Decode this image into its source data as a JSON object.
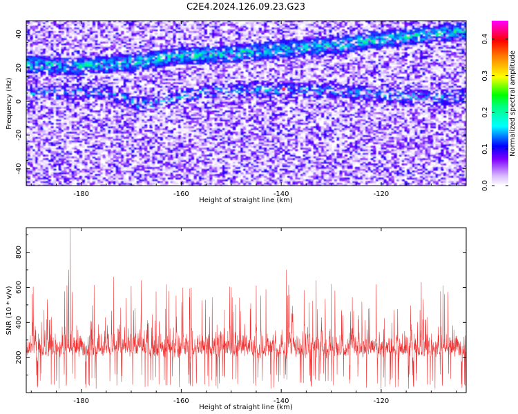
{
  "title": "C2E4.2024.126.09.23.G23",
  "chart_data": [
    {
      "type": "heatmap",
      "xlabel": "Height of straight line (km)",
      "ylabel": "Frequency (Hz)",
      "xlim": [
        -191,
        -103
      ],
      "ylim": [
        -50,
        48
      ],
      "x_ticks": [
        -180,
        -160,
        -140,
        -120
      ],
      "x_tick_labels": [
        "-180",
        "-160",
        "-140",
        "-120"
      ],
      "y_ticks": [
        40,
        20,
        0,
        -20,
        -40
      ],
      "y_tick_labels": [
        "40",
        "20",
        "0",
        "-20",
        "-40"
      ],
      "colorbar": {
        "label": "Normalized spectral amplitude",
        "range": [
          0,
          0.45
        ],
        "ticks": [
          0.0,
          0.1,
          0.2,
          0.3,
          0.4
        ],
        "tick_labels": [
          "0.0",
          "0.1",
          "0.2",
          "0.3",
          "0.4"
        ],
        "colormap": [
          "#ffffff",
          "#7f00ff",
          "#0000ff",
          "#00ffff",
          "#00ff00",
          "#ffff00",
          "#ff8000",
          "#ff0000",
          "#ff00ff"
        ]
      },
      "features": [
        {
          "name": "upper band",
          "points": [
            [
              -191,
              22
            ],
            [
              -180,
              21
            ],
            [
              -170,
              23
            ],
            [
              -160,
              27
            ],
            [
              -150,
              28
            ],
            [
              -140,
              31
            ],
            [
              -130,
              33
            ],
            [
              -120,
              37
            ],
            [
              -110,
              40
            ],
            [
              -103,
              42
            ]
          ]
        },
        {
          "name": "lower band",
          "points": [
            [
              -188,
              5
            ],
            [
              -175,
              6
            ],
            [
              -168,
              -2
            ],
            [
              -155,
              6
            ],
            [
              -140,
              7
            ],
            [
              -128,
              6
            ],
            [
              -110,
              2
            ],
            [
              -104,
              3
            ]
          ]
        }
      ],
      "peak": {
        "x": -139.5,
        "y": 7.5,
        "value": 0.44
      }
    },
    {
      "type": "line",
      "xlabel": "Height of straight line (km)",
      "ylabel": "SNR (10 * v/v)",
      "xlim": [
        -191,
        -103
      ],
      "ylim": [
        0,
        940
      ],
      "x_ticks": [
        -180,
        -160,
        -140,
        -120
      ],
      "x_tick_labels": [
        "-180",
        "-160",
        "-140",
        "-120"
      ],
      "y_ticks": [
        200,
        400,
        600,
        800
      ],
      "y_tick_labels": [
        "200",
        "400",
        "600",
        "800"
      ],
      "series": [
        {
          "color": "#ee3030",
          "typical_range": [
            100,
            420
          ],
          "spikes": [
            [
              -182.2,
              940
            ],
            [
              -182.5,
              700
            ],
            [
              -173.5,
              660
            ],
            [
              -168,
              640
            ],
            [
              -133,
              640
            ],
            [
              -112,
              630
            ],
            [
              -145,
              610
            ],
            [
              -150,
              600
            ],
            [
              -139,
              700
            ]
          ]
        }
      ]
    }
  ]
}
